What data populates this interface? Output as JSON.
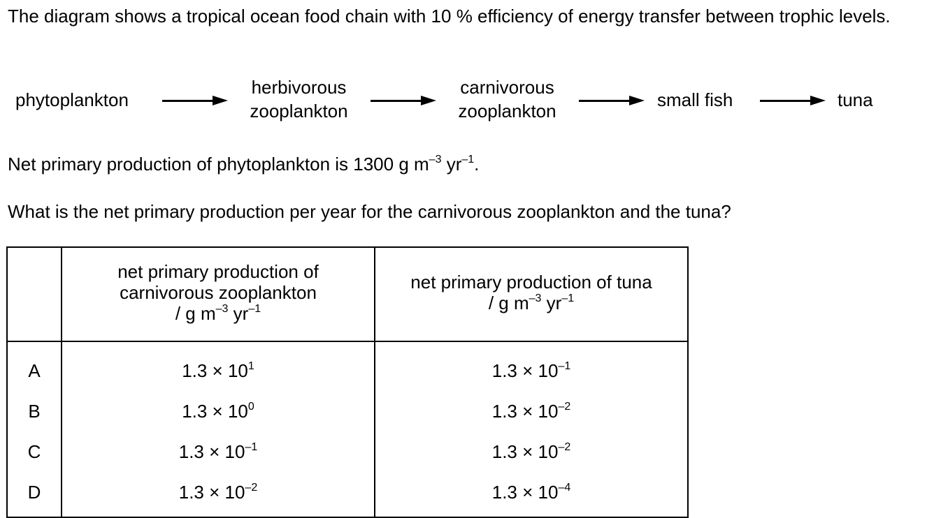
{
  "question": {
    "intro": "The diagram shows a tropical ocean food chain with 10 % efficiency of energy transfer between trophic levels.",
    "food_chain": [
      {
        "line1": "phytoplankton",
        "line2": ""
      },
      {
        "line1": "herbivorous",
        "line2": "zooplankton"
      },
      {
        "line1": "carnivorous",
        "line2": "zooplankton"
      },
      {
        "line1": "small fish",
        "line2": ""
      },
      {
        "line1": "tuna",
        "line2": ""
      }
    ],
    "npp_statement": {
      "prefix": "Net primary production of phytoplankton is 1300 g m",
      "exp1": "–3",
      "middle": " yr",
      "exp2": "–1",
      "suffix": "."
    },
    "prompt": "What is the net primary production per year for the carnivorous zooplankton and the tuna?"
  },
  "table": {
    "col1_header": {
      "line1": "net primary production of",
      "line2": "carnivorous zooplankton",
      "unit_prefix": "/ g m",
      "unit_exp1": "–3",
      "unit_mid": " yr",
      "unit_exp2": "–1"
    },
    "col2_header": {
      "line1": "net primary production of tuna",
      "unit_prefix": "/ g m",
      "unit_exp1": "–3",
      "unit_mid": " yr",
      "unit_exp2": "–1"
    },
    "rows": [
      {
        "option": "A",
        "carn_base": "1.3 × 10",
        "carn_exp": "1",
        "tuna_base": "1.3 × 10",
        "tuna_exp": "–1"
      },
      {
        "option": "B",
        "carn_base": "1.3 × 10",
        "carn_exp": "0",
        "tuna_base": "1.3 × 10",
        "tuna_exp": "–2"
      },
      {
        "option": "C",
        "carn_base": "1.3 × 10",
        "carn_exp": "–1",
        "tuna_base": "1.3 × 10",
        "tuna_exp": "–2"
      },
      {
        "option": "D",
        "carn_base": "1.3 × 10",
        "carn_exp": "–2",
        "tuna_base": "1.3 × 10",
        "tuna_exp": "–4"
      }
    ]
  }
}
